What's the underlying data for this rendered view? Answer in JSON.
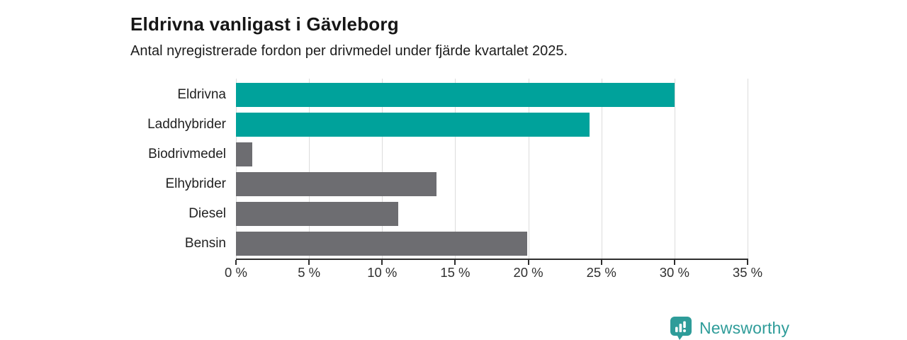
{
  "header": {
    "title": "Eldrivna vanligast i Gävleborg",
    "subtitle": "Antal nyregistrerade fordon per drivmedel under fjärde kvartalet 2025."
  },
  "chart_data": {
    "type": "bar",
    "orientation": "horizontal",
    "title": "Eldrivna vanligast i Gävleborg",
    "subtitle": "Antal nyregistrerade fordon per drivmedel under fjärde kvartalet 2025.",
    "categories": [
      "Eldrivna",
      "Laddhybrider",
      "Biodrivmedel",
      "Elhybrider",
      "Diesel",
      "Bensin"
    ],
    "values": [
      30.0,
      24.2,
      1.1,
      13.7,
      11.1,
      19.9
    ],
    "unit": "%",
    "bar_colors": [
      "#00a29b",
      "#00a29b",
      "#6d6d71",
      "#6d6d71",
      "#6d6d71",
      "#6d6d71"
    ],
    "highlight_color": "#00a29b",
    "base_color": "#6d6d71",
    "xlabel": "",
    "ylabel": "",
    "xlim": [
      0,
      35
    ],
    "xticks": [
      0,
      5,
      10,
      15,
      20,
      25,
      30,
      35
    ],
    "xtick_labels": [
      "0 %",
      "5 %",
      "10 %",
      "15 %",
      "20 %",
      "25 %",
      "30 %",
      "35 %"
    ],
    "grid": "vertical-gridlines-on",
    "gridline_color": "#dcdcdc",
    "axis_color": "#2e2e2e",
    "legend": "none"
  },
  "footer": {
    "brand": "Newsworthy",
    "brand_color": "#2e9c99",
    "icon": "newsworthy-logo-icon"
  }
}
